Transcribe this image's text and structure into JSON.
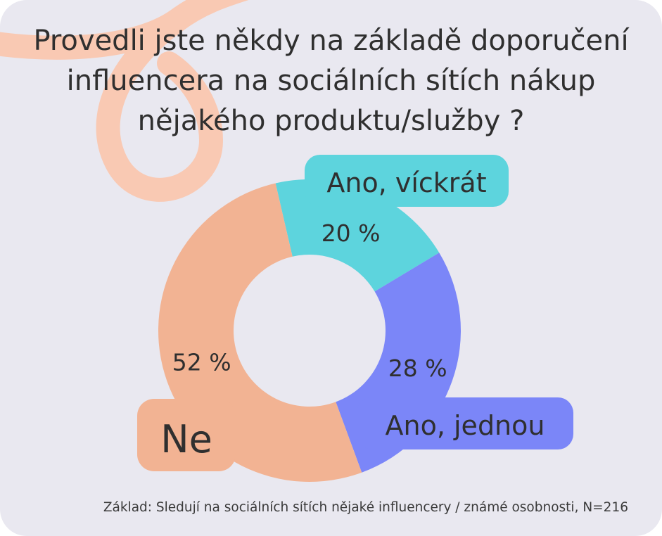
{
  "title": "Provedli jste někdy na základě doporučení influencera na sociálních sítích nákup nějakého produktu/služby ?",
  "footnote": "Základ: Sledují na sociálních sítích nějaké influencery / známé osobnosti, N=216",
  "colors": {
    "background": "#e9e8f0",
    "decoration": "#f9c9b3",
    "ano_vickrat": "#5dd4dd",
    "ano_jednou": "#7b86f8",
    "ne": "#f2b393"
  },
  "chart_data": {
    "type": "pie",
    "variant": "donut",
    "title": "Provedli jste někdy na základě doporučení influencera na sociálních sítích nákup nějakého produktu/služby ?",
    "slices": [
      {
        "label": "Ano, víckrát",
        "value": 20,
        "display": "20 %",
        "color": "#5dd4dd"
      },
      {
        "label": "Ano, jednou",
        "value": 28,
        "display": "28 %",
        "color": "#7b86f8"
      },
      {
        "label": "Ne",
        "value": 52,
        "display": "52 %",
        "color": "#f2b393"
      }
    ],
    "unit": "%"
  }
}
